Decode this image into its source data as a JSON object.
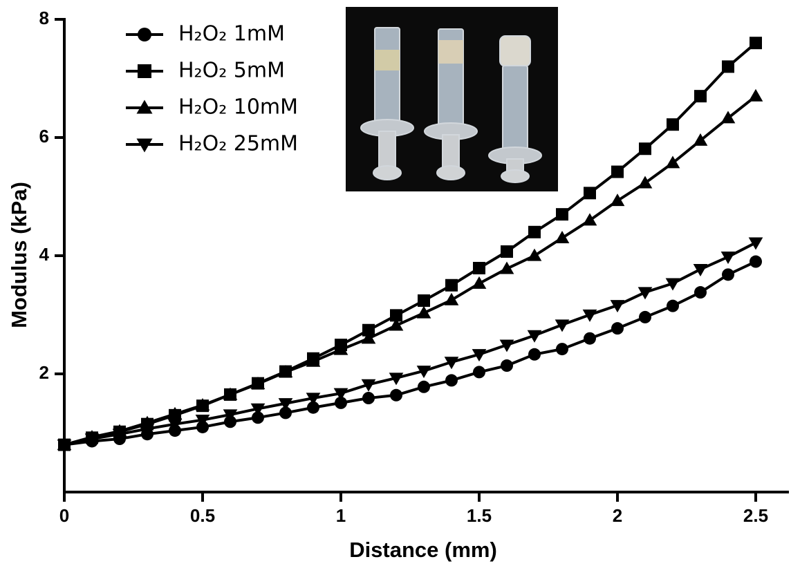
{
  "chart_data": {
    "type": "line",
    "x_label": "Distance (mm)",
    "y_label": "Modulus (kPa)",
    "x": [
      0,
      0.1,
      0.2,
      0.3,
      0.4,
      0.5,
      0.6,
      0.7,
      0.8,
      0.9,
      1.0,
      1.1,
      1.2,
      1.3,
      1.4,
      1.5,
      1.6,
      1.7,
      1.8,
      1.9,
      2.0,
      2.1,
      2.2,
      2.3,
      2.4,
      2.5
    ],
    "series": [
      {
        "name": "H₂O₂ 1mM",
        "color": "#000000",
        "marker": "circle",
        "values": [
          0.8,
          0.86,
          0.9,
          0.98,
          1.04,
          1.1,
          1.19,
          1.26,
          1.34,
          1.43,
          1.51,
          1.59,
          1.64,
          1.78,
          1.89,
          2.03,
          2.14,
          2.33,
          2.42,
          2.6,
          2.77,
          2.96,
          3.15,
          3.38,
          3.68,
          3.9
        ]
      },
      {
        "name": "H₂O₂ 5mM",
        "color": "#000000",
        "marker": "square",
        "values": [
          0.8,
          0.92,
          1.02,
          1.15,
          1.3,
          1.46,
          1.65,
          1.84,
          2.04,
          2.26,
          2.49,
          2.74,
          2.99,
          3.24,
          3.5,
          3.79,
          4.07,
          4.4,
          4.7,
          5.06,
          5.42,
          5.81,
          6.22,
          6.7,
          7.2,
          7.6
        ]
      },
      {
        "name": "H₂O₂ 10mM",
        "color": "#000000",
        "marker": "triangle",
        "values": [
          0.8,
          0.93,
          1.03,
          1.17,
          1.32,
          1.47,
          1.65,
          1.83,
          2.03,
          2.21,
          2.41,
          2.6,
          2.82,
          3.03,
          3.25,
          3.53,
          3.78,
          4.0,
          4.3,
          4.6,
          4.93,
          5.23,
          5.57,
          5.95,
          6.33,
          6.7
        ]
      },
      {
        "name": "H₂O₂ 25mM",
        "color": "#000000",
        "marker": "triangle-down",
        "values": [
          0.8,
          0.9,
          0.98,
          1.07,
          1.15,
          1.22,
          1.31,
          1.41,
          1.5,
          1.59,
          1.67,
          1.82,
          1.93,
          2.05,
          2.2,
          2.33,
          2.49,
          2.65,
          2.83,
          3.0,
          3.16,
          3.38,
          3.53,
          3.77,
          3.98,
          4.22
        ]
      }
    ],
    "xlim": [
      0,
      2.62
    ],
    "xticks": [
      0,
      0.5,
      1,
      1.5,
      2,
      2.5
    ],
    "ylim": [
      0,
      8
    ],
    "yticks": [
      2,
      4,
      6,
      8
    ],
    "grid": false,
    "legend": "top-left"
  }
}
